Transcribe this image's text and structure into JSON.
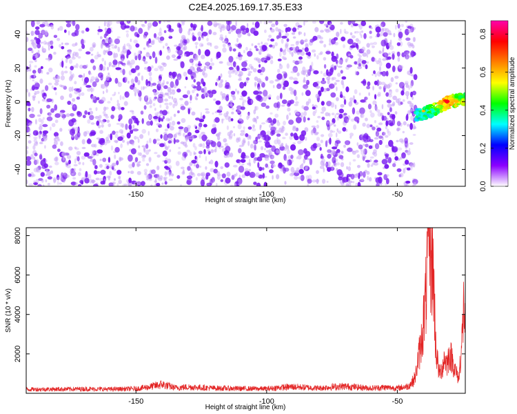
{
  "page_title": "C2E4.2025.169.17.35.E33",
  "colors": {
    "line": "#e32626",
    "background": "#ffffff",
    "frame": "#000000",
    "scatter_base": "#7a1df0",
    "scatter_light": "#c9a6f7"
  },
  "chart_data": [
    {
      "type": "heatmap",
      "title": "C2E4.2025.169.17.35.E33",
      "xlabel": "Height of straight line (km)",
      "ylabel": "Frequency (Hz)",
      "xlim": [
        -192,
        -24
      ],
      "ylim": [
        -50,
        48
      ],
      "xticks": [
        -150,
        -100,
        -50
      ],
      "xtick_labels": [
        "-150",
        "-100",
        "-50"
      ],
      "yticks": [
        -40,
        -20,
        0,
        20,
        40
      ],
      "ytick_labels": [
        "-40",
        "-20",
        "0",
        "20",
        "40"
      ],
      "grid": false,
      "legend": "none",
      "noise_region": {
        "x": [
          -192,
          -43
        ],
        "level": 0.06
      },
      "signal_region": {
        "x": [
          -43,
          -24
        ],
        "frequency_trend": [
          [
            -43,
            -8
          ],
          [
            -38,
            -6
          ],
          [
            -34,
            -3
          ],
          [
            -30,
            0
          ],
          [
            -27,
            1
          ],
          [
            -24,
            2
          ]
        ],
        "peak": {
          "x": -31,
          "frequency": 0,
          "amplitude": 0.85
        }
      },
      "colorbar": {
        "label": "Normalized spectral amplitude",
        "range": [
          0.0,
          0.87
        ],
        "ticks": [
          0.0,
          0.2,
          0.4,
          0.6,
          0.8
        ],
        "tick_labels": [
          "0.0",
          "0.2",
          "0.4",
          "0.6",
          "0.8"
        ],
        "colormap": [
          "#ffffff",
          "#8b00ff",
          "#0000ff",
          "#00ffff",
          "#00ff00",
          "#ffff00",
          "#ff7f00",
          "#ff0000",
          "#ff00aa"
        ]
      }
    },
    {
      "type": "line",
      "xlabel": "Height of straight line (km)",
      "ylabel": "SNR (10 * v/v)",
      "xlim": [
        -192,
        -24
      ],
      "ylim": [
        0,
        8400
      ],
      "xticks": [
        -150,
        -100,
        -50
      ],
      "xtick_labels": [
        "-150",
        "-100",
        "-50"
      ],
      "yticks": [
        2000,
        4000,
        6000,
        8000
      ],
      "ytick_labels": [
        "2000",
        "4000",
        "6000",
        "8000"
      ],
      "grid": false,
      "legend": "none",
      "series": [
        {
          "x": [
            -192,
            -180,
            -170,
            -160,
            -150,
            -145,
            -140,
            -135,
            -130,
            -120,
            -110,
            -100,
            -95,
            -90,
            -80,
            -75,
            -70,
            -60,
            -55,
            -50,
            -46,
            -44,
            -43,
            -42,
            -41,
            -40,
            -39,
            -38.5,
            -38,
            -37.5,
            -37,
            -36.5,
            -36,
            -35.5,
            -35,
            -34.5,
            -34,
            -33,
            -32,
            -31,
            -30,
            -29,
            -28,
            -27,
            -26.5,
            -26,
            -25.5,
            -25,
            -24.5,
            -24
          ],
          "values": [
            200,
            210,
            220,
            210,
            230,
            320,
            450,
            280,
            320,
            260,
            240,
            230,
            290,
            330,
            260,
            320,
            350,
            260,
            300,
            260,
            350,
            600,
            900,
            1800,
            2400,
            3600,
            5000,
            6500,
            8400,
            7800,
            6200,
            7200,
            5200,
            3000,
            2000,
            1500,
            1000,
            1200,
            1800,
            1500,
            2000,
            1700,
            1200,
            900,
            700,
            1600,
            2200,
            3200,
            4800,
            3000
          ]
        }
      ]
    }
  ]
}
